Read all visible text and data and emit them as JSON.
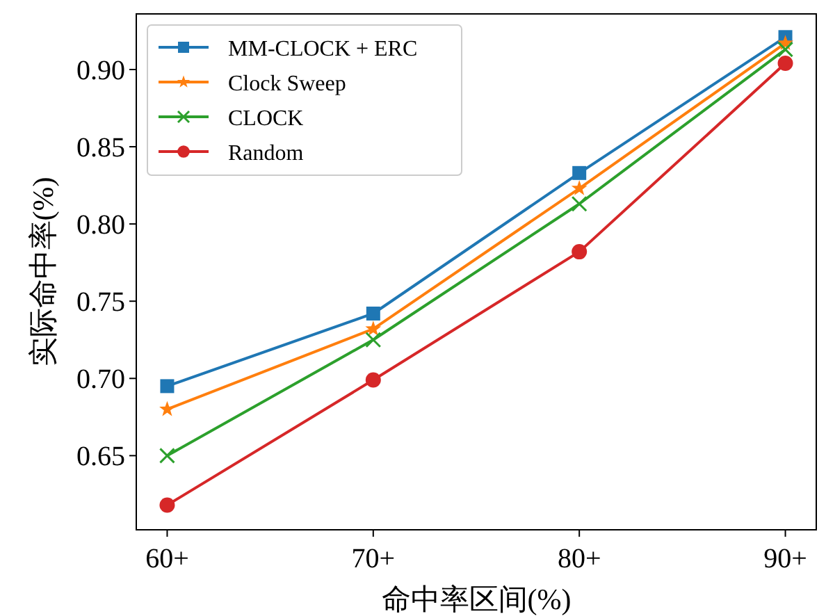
{
  "chart_data": {
    "type": "line",
    "xlabel": "命中率区间(%)",
    "ylabel": "实际命中率(%)",
    "categories": [
      "60+",
      "70+",
      "80+",
      "90+"
    ],
    "ylim": [
      0.602,
      0.936
    ],
    "yticks": [
      {
        "value": 0.65,
        "label": "0.65"
      },
      {
        "value": 0.7,
        "label": "0.70"
      },
      {
        "value": 0.75,
        "label": "0.75"
      },
      {
        "value": 0.8,
        "label": "0.80"
      },
      {
        "value": 0.85,
        "label": "0.85"
      },
      {
        "value": 0.9,
        "label": "0.90"
      }
    ],
    "grid": false,
    "legend": "top left",
    "series": [
      {
        "name": "MM-CLOCK + ERC",
        "color": "#1f77b4",
        "marker": "square",
        "values": [
          0.695,
          0.742,
          0.833,
          0.921
        ]
      },
      {
        "name": "Clock Sweep",
        "color": "#ff7f0e",
        "marker": "star",
        "values": [
          0.68,
          0.732,
          0.823,
          0.917
        ]
      },
      {
        "name": "CLOCK",
        "color": "#2ca02c",
        "marker": "cross",
        "values": [
          0.65,
          0.725,
          0.813,
          0.913
        ]
      },
      {
        "name": "Random",
        "color": "#d62728",
        "marker": "circle",
        "values": [
          0.618,
          0.699,
          0.782,
          0.904
        ]
      }
    ]
  }
}
